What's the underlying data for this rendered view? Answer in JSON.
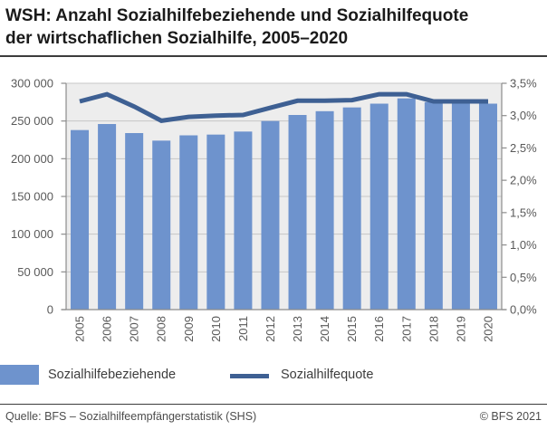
{
  "header": {
    "title_line1": "WSH: Anzahl Sozialhilfebeziehende und Sozialhilfequote",
    "title_line2": "der wirtschaflichen Sozialhilfe, 2005–2020"
  },
  "chart_data": {
    "type": "bar",
    "subtype": "combo-bar-line",
    "categories": [
      "2005",
      "2006",
      "2007",
      "2008",
      "2009",
      "2010",
      "2011",
      "2012",
      "2013",
      "2014",
      "2015",
      "2016",
      "2017",
      "2018",
      "2019",
      "2020"
    ],
    "series": [
      {
        "name": "Sozialhilfebeziehende",
        "type": "bar",
        "axis": "left",
        "color": "#6e93cd",
        "values": [
          238000,
          246000,
          234000,
          224000,
          231000,
          232000,
          236000,
          250000,
          258000,
          263000,
          268000,
          273000,
          280000,
          275000,
          274000,
          273000
        ]
      },
      {
        "name": "Sozialhilfequote",
        "type": "line",
        "axis": "right",
        "color": "#3e6093",
        "values": [
          3.22,
          3.33,
          3.14,
          2.92,
          2.98,
          3.0,
          3.01,
          3.12,
          3.23,
          3.23,
          3.24,
          3.33,
          3.33,
          3.22,
          3.22,
          3.22
        ]
      }
    ],
    "left_axis": {
      "min": 0,
      "max": 300000,
      "step": 50000,
      "tick_labels": [
        "0",
        "50 000",
        "100 000",
        "150 000",
        "200 000",
        "250 000",
        "300 000"
      ]
    },
    "right_axis": {
      "min": 0,
      "max": 3.5,
      "step": 0.5,
      "tick_labels": [
        "0,0%",
        "0,5%",
        "1,0%",
        "1,5%",
        "2,0%",
        "2,5%",
        "3,0%",
        "3,5%"
      ]
    },
    "grid": "horizontal gridlines at left-axis steps, plot background shaded",
    "legend_position": "bottom",
    "colors": {
      "plot_bg": "#ededed",
      "gridline": "#c6c6c6",
      "axis": "#8c8c8c",
      "tick_label": "#595959"
    }
  },
  "legend": {
    "items": [
      {
        "label": "Sozialhilfebeziehende",
        "swatch": "bar-square"
      },
      {
        "label": "Sozialhilfequote",
        "swatch": "line"
      }
    ]
  },
  "footer": {
    "source": "Quelle: BFS – Sozialhilfeempfängerstatistik (SHS)",
    "copyright": "© BFS 2021"
  }
}
